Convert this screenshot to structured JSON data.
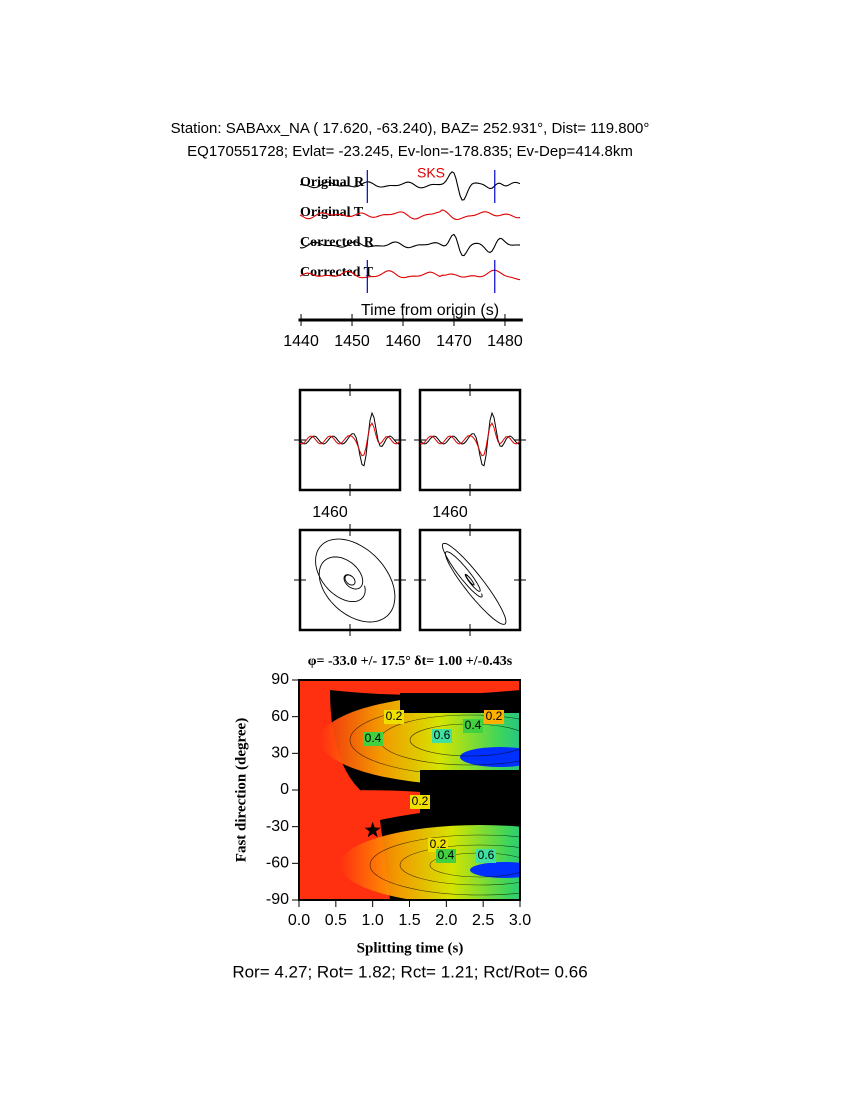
{
  "header": {
    "station": "Station: SABAxx_NA (  17.620,  -63.240), BAZ=  252.931°, Dist=  119.800°",
    "event": "EQ170551728; Evlat= -23.245, Ev-lon=-178.835; Ev-Dep=414.8km"
  },
  "traces": {
    "labels": [
      "Original R",
      "Original T",
      "Corrected R",
      "Corrected T"
    ],
    "phase": "SKS",
    "xlabel": "Time from origin (s)",
    "xlim": [
      1439.5,
      1483.5
    ],
    "xticks": [
      1440,
      1450,
      1460,
      1470,
      1480
    ],
    "window": [
      1453,
      1478
    ]
  },
  "waveform_panels": {
    "xtick_label": 1460
  },
  "grid_search": {
    "title": "φ= -33.0 +/- 17.5° δt= 1.00 +/-0.43s",
    "xlabel": "Splitting time (s)",
    "ylabel": "Fast direction (degree)",
    "xlim": [
      0,
      3
    ],
    "ylim": [
      -90,
      90
    ],
    "xticks": [
      {
        "value": 0,
        "label": "0.0"
      },
      0.5,
      {
        "value": 1,
        "label": "1.0"
      },
      1.5,
      {
        "value": 2,
        "label": "2.0"
      },
      2.5,
      {
        "value": 3,
        "label": "3.0"
      }
    ],
    "yticks": [
      -90,
      -60,
      -30,
      0,
      30,
      60,
      90
    ],
    "best": {
      "x": 1.0,
      "y": -33.0
    },
    "contour_labels": [
      "0.2",
      "0.4",
      "0.6"
    ]
  },
  "footer": "Ror= 4.27; Rot= 1.82; Rct= 1.21; Rct/Rot= 0.66"
}
